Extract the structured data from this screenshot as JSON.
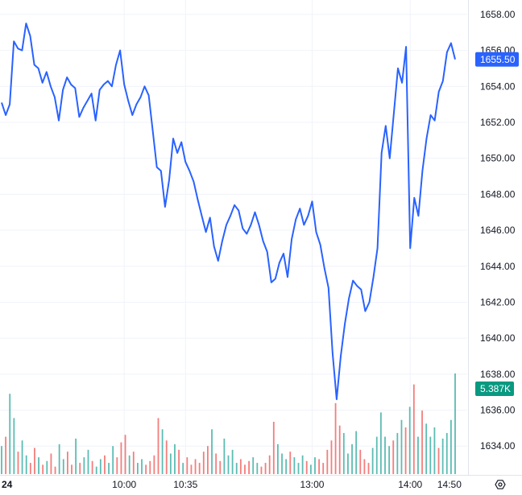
{
  "chart_data": {
    "type": "line",
    "title": "",
    "xlabel": "",
    "ylabel": "",
    "ylim": [
      1632.4,
      1658.8
    ],
    "y_ticks": [
      "1658.00",
      "1656.00",
      "1654.00",
      "1652.00",
      "1650.00",
      "1648.00",
      "1646.00",
      "1644.00",
      "1642.00",
      "1640.00",
      "1638.00",
      "1636.00",
      "1634.00"
    ],
    "x_ticks": [
      "24",
      "10:00",
      "10:35",
      "13:00",
      "14:00",
      "14:50"
    ],
    "grid": true,
    "price_color": "#2962ff",
    "last_price": 1655.5,
    "last_price_label": "1655.50",
    "volume_label": "5.387K",
    "volume_badge_color": "#089981",
    "volume_up_color": "#26a69a",
    "volume_down_color": "#ef5350",
    "volume_max": 5.387,
    "series": [
      {
        "values": [
          1653.1,
          1652.4,
          1653.0,
          1656.5,
          1656.1,
          1656.0,
          1657.5,
          1656.8,
          1655.2,
          1655.0,
          1654.2,
          1654.8,
          1654.0,
          1653.4,
          1652.1,
          1653.8,
          1654.5,
          1654.1,
          1653.9,
          1652.3,
          1652.8,
          1653.2,
          1653.6,
          1652.1,
          1653.8,
          1654.1,
          1654.3,
          1654.0,
          1655.2,
          1656.0,
          1654.1,
          1653.2,
          1652.4,
          1653.0,
          1653.4,
          1654.0,
          1653.5,
          1651.5,
          1649.5,
          1649.3,
          1647.3,
          1648.8,
          1651.1,
          1650.3,
          1650.9,
          1649.8,
          1649.3,
          1648.7,
          1647.7,
          1646.8,
          1645.9,
          1646.7,
          1645.1,
          1644.3,
          1645.4,
          1646.3,
          1646.8,
          1647.4,
          1647.1,
          1646.1,
          1645.8,
          1646.3,
          1647.0,
          1646.3,
          1645.4,
          1644.8,
          1643.1,
          1643.3,
          1644.2,
          1644.7,
          1643.4,
          1645.5,
          1646.6,
          1647.2,
          1646.3,
          1646.8,
          1647.6,
          1645.9,
          1645.2,
          1643.9,
          1642.8,
          1639.2,
          1636.6,
          1639.0,
          1640.8,
          1642.2,
          1643.2,
          1642.9,
          1642.7,
          1641.5,
          1642.0,
          1643.4,
          1645.0,
          1650.3,
          1651.8,
          1650.0,
          1652.5,
          1655.0,
          1654.2,
          1656.2,
          1645.0,
          1647.8,
          1646.8,
          1649.3,
          1651.1,
          1652.4,
          1652.1,
          1653.7,
          1654.3,
          1655.9,
          1656.4,
          1655.5
        ]
      }
    ],
    "volume_values": [
      1.5,
      2.0,
      4.3,
      3.0,
      1.2,
      1.8,
      1.0,
      0.6,
      1.4,
      0.9,
      0.5,
      0.7,
      1.1,
      0.4,
      1.6,
      0.8,
      1.2,
      0.5,
      1.9,
      0.6,
      0.9,
      1.3,
      0.7,
      0.4,
      0.8,
      1.0,
      0.6,
      1.5,
      0.9,
      1.7,
      2.1,
      1.0,
      1.2,
      0.6,
      0.8,
      0.5,
      0.7,
      1.0,
      3.0,
      2.4,
      1.8,
      1.1,
      1.6,
      1.3,
      0.6,
      0.9,
      0.5,
      0.8,
      0.6,
      1.2,
      1.5,
      2.4,
      1.1,
      0.7,
      1.9,
      1.0,
      1.3,
      0.6,
      0.8,
      0.5,
      0.7,
      0.9,
      0.6,
      0.4,
      0.6,
      1.0,
      2.8,
      1.6,
      1.1,
      0.8,
      1.2,
      0.9,
      0.6,
      1.0,
      0.7,
      0.5,
      0.9,
      0.8,
      0.6,
      1.3,
      1.8,
      3.8,
      2.6,
      2.2,
      1.1,
      1.6,
      2.3,
      1.3,
      0.8,
      0.6,
      1.4,
      2.0,
      3.3,
      2.0,
      1.5,
      1.8,
      2.2,
      2.9,
      2.5,
      3.6,
      4.8,
      2.0,
      3.4,
      2.7,
      2.0,
      2.5,
      1.4,
      1.9,
      2.2,
      2.9,
      5.387
    ],
    "volume_up": [
      1,
      0,
      1,
      1,
      0,
      1,
      1,
      0,
      0,
      1,
      0,
      1,
      0,
      0,
      1,
      1,
      0,
      0,
      1,
      0,
      1,
      1,
      0,
      1,
      1,
      0,
      1,
      1,
      0,
      0,
      0,
      1,
      0,
      1,
      1,
      0,
      0,
      0,
      0,
      1,
      0,
      1,
      1,
      0,
      1,
      0,
      0,
      0,
      0,
      0,
      0,
      1,
      0,
      0,
      1,
      1,
      1,
      1,
      0,
      0,
      0,
      1,
      1,
      0,
      0,
      0,
      0,
      1,
      1,
      1,
      0,
      1,
      1,
      1,
      0,
      1,
      1,
      0,
      0,
      0,
      0,
      0,
      0,
      1,
      1,
      1,
      1,
      0,
      0,
      0,
      1,
      1,
      1,
      1,
      1,
      0,
      1,
      1,
      0,
      1,
      0,
      1,
      0,
      1,
      1,
      1,
      0,
      1,
      1,
      1,
      1,
      0
    ]
  }
}
